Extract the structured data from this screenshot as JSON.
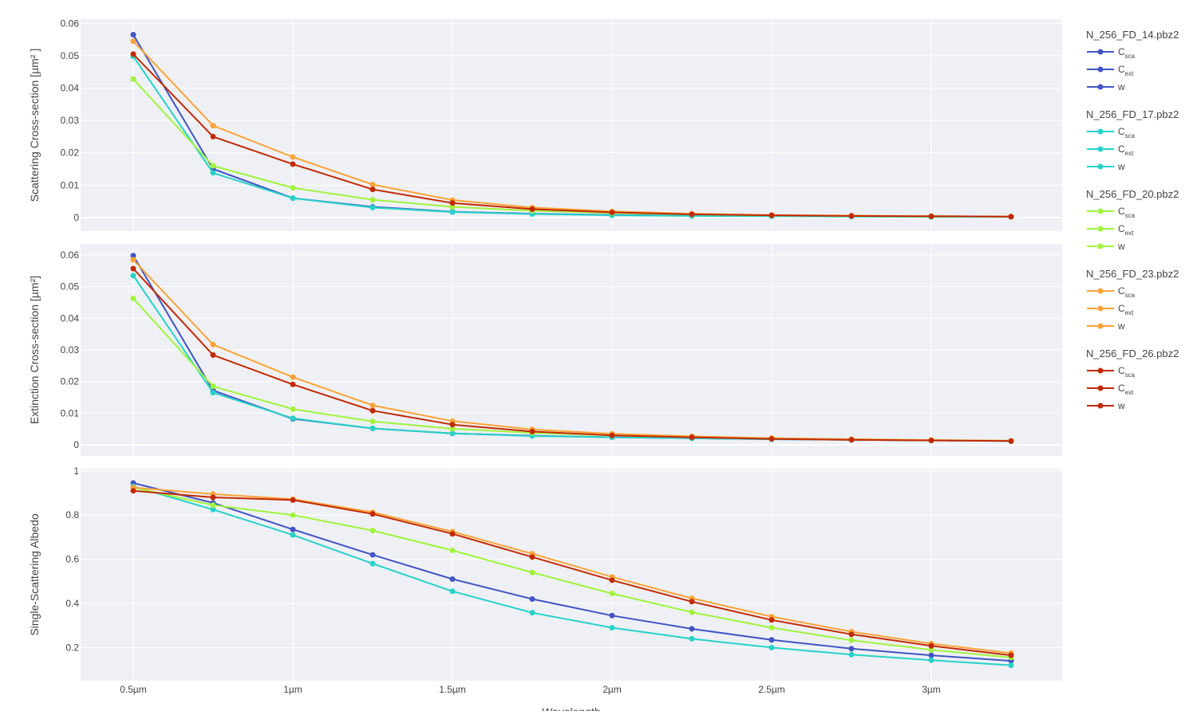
{
  "chart_data": {
    "type": "line",
    "x_label": "Wavelength",
    "x": [
      0.5,
      0.75,
      1.0,
      1.25,
      1.5,
      1.75,
      2.0,
      2.25,
      2.5,
      2.75,
      3.0,
      3.25
    ],
    "x_ticks": [
      {
        "value": 0.5,
        "label": "0.5µm"
      },
      {
        "value": 1.0,
        "label": "1µm"
      },
      {
        "value": 1.5,
        "label": "1.5µm"
      },
      {
        "value": 2.0,
        "label": "2µm"
      },
      {
        "value": 2.5,
        "label": "2.5µm"
      },
      {
        "value": 3.0,
        "label": "3µm"
      }
    ],
    "xlim": [
      0.335,
      3.41
    ],
    "grid": true,
    "legend_position": "right",
    "panels": [
      {
        "key": "csca",
        "ylabel": "Scattering Cross-section [µm² ]",
        "ylim": [
          -0.0042,
          0.0613
        ],
        "y_ticks": [
          {
            "value": 0,
            "label": "0"
          },
          {
            "value": 0.01,
            "label": "0.01"
          },
          {
            "value": 0.02,
            "label": "0.02"
          },
          {
            "value": 0.03,
            "label": "0.03"
          },
          {
            "value": 0.04,
            "label": "0.04"
          },
          {
            "value": 0.05,
            "label": "0.05"
          },
          {
            "value": 0.06,
            "label": "0.06"
          }
        ]
      },
      {
        "key": "cext",
        "ylabel": "Extinction Cross-section [µm²]",
        "ylim": [
          -0.0035,
          0.0635
        ],
        "y_ticks": [
          {
            "value": 0,
            "label": "0"
          },
          {
            "value": 0.01,
            "label": "0.01"
          },
          {
            "value": 0.02,
            "label": "0.02"
          },
          {
            "value": 0.03,
            "label": "0.03"
          },
          {
            "value": 0.04,
            "label": "0.04"
          },
          {
            "value": 0.05,
            "label": "0.05"
          },
          {
            "value": 0.06,
            "label": "0.06"
          }
        ]
      },
      {
        "key": "w",
        "ylabel": "Single-Scattering Albedo",
        "ylim": [
          0.05,
          1.01
        ],
        "y_ticks": [
          {
            "value": 0.2,
            "label": "0.2"
          },
          {
            "value": 0.4,
            "label": "0.4"
          },
          {
            "value": 0.6,
            "label": "0.6"
          },
          {
            "value": 0.8,
            "label": "0.8"
          },
          {
            "value": 1.0,
            "label": "1"
          }
        ]
      }
    ],
    "groups": [
      {
        "name": "N_256_FD_14.pbz2",
        "color": "#4254c4",
        "csca": [
          0.0565,
          0.015,
          0.006,
          0.0033,
          0.0018,
          0.0012,
          0.0008,
          0.0006,
          0.0005,
          0.0004,
          0.0003,
          0.0002
        ],
        "cext": [
          0.0598,
          0.0172,
          0.0082,
          0.0052,
          0.0036,
          0.0029,
          0.0024,
          0.0021,
          0.0018,
          0.0016,
          0.0014,
          0.0012
        ],
        "w": [
          0.945,
          0.855,
          0.735,
          0.62,
          0.51,
          0.42,
          0.345,
          0.285,
          0.235,
          0.195,
          0.165,
          0.14
        ]
      },
      {
        "name": "N_256_FD_17.pbz2",
        "color": "#26d2c8",
        "csca": [
          0.0498,
          0.0138,
          0.006,
          0.0031,
          0.0017,
          0.0011,
          0.0007,
          0.0005,
          0.0004,
          0.0003,
          0.0002,
          0.0002
        ],
        "cext": [
          0.0535,
          0.0165,
          0.0084,
          0.0052,
          0.0036,
          0.0028,
          0.0024,
          0.0021,
          0.0018,
          0.0016,
          0.0014,
          0.0012
        ],
        "w": [
          0.93,
          0.825,
          0.71,
          0.58,
          0.455,
          0.358,
          0.29,
          0.24,
          0.2,
          0.168,
          0.143,
          0.12
        ]
      },
      {
        "name": "N_256_FD_20.pbz2",
        "color": "#a0f43c",
        "csca": [
          0.0428,
          0.016,
          0.0092,
          0.0055,
          0.0033,
          0.0021,
          0.0014,
          0.001,
          0.0007,
          0.0005,
          0.0004,
          0.0003
        ],
        "cext": [
          0.0463,
          0.0185,
          0.0113,
          0.0074,
          0.0051,
          0.0038,
          0.003,
          0.0025,
          0.0021,
          0.0018,
          0.0015,
          0.0013
        ],
        "w": [
          0.925,
          0.845,
          0.8,
          0.73,
          0.64,
          0.54,
          0.445,
          0.36,
          0.29,
          0.233,
          0.19,
          0.155
        ]
      },
      {
        "name": "N_256_FD_23.pbz2",
        "color": "#fca336",
        "csca": [
          0.0545,
          0.0284,
          0.0187,
          0.0102,
          0.0054,
          0.0031,
          0.0019,
          0.0012,
          0.0008,
          0.0006,
          0.0004,
          0.0003
        ],
        "cext": [
          0.0585,
          0.0317,
          0.0214,
          0.0125,
          0.0075,
          0.0049,
          0.0035,
          0.0027,
          0.0021,
          0.0018,
          0.0015,
          0.0013
        ],
        "w": [
          0.925,
          0.895,
          0.872,
          0.813,
          0.725,
          0.625,
          0.52,
          0.423,
          0.34,
          0.272,
          0.218,
          0.175
        ]
      },
      {
        "name": "N_256_FD_26.pbz2",
        "color": "#c22a03",
        "csca": [
          0.0505,
          0.025,
          0.0165,
          0.0087,
          0.0045,
          0.0026,
          0.0016,
          0.001,
          0.0007,
          0.0005,
          0.0004,
          0.0003
        ],
        "cext": [
          0.0557,
          0.0284,
          0.0191,
          0.0108,
          0.0064,
          0.0042,
          0.003,
          0.0024,
          0.0019,
          0.0016,
          0.0014,
          0.0012
        ],
        "w": [
          0.91,
          0.88,
          0.868,
          0.805,
          0.715,
          0.61,
          0.505,
          0.408,
          0.325,
          0.26,
          0.208,
          0.165
        ]
      }
    ],
    "legend_items": [
      {
        "base": "C",
        "sub": "sca"
      },
      {
        "base": "C",
        "sub": "ext"
      },
      {
        "base": "w",
        "sub": ""
      }
    ]
  }
}
